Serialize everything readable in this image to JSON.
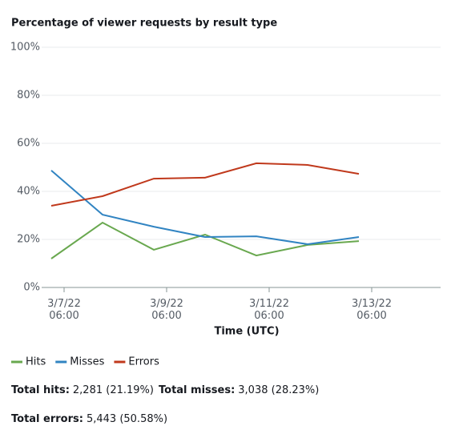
{
  "chart_data": {
    "type": "line",
    "title": "Percentage of viewer requests by result type",
    "x_label": "Time (UTC)",
    "x": [
      "2022-03-07T00:00Z",
      "2022-03-08T00:00Z",
      "2022-03-09T00:00Z",
      "2022-03-10T00:00Z",
      "2022-03-11T00:00Z",
      "2022-03-12T00:00Z",
      "2022-03-13T00:00Z"
    ],
    "series": [
      {
        "name": "Hits",
        "color": "#69a84f",
        "values": [
          12,
          27,
          15.7,
          22,
          13.3,
          17.7,
          19.3
        ]
      },
      {
        "name": "Misses",
        "color": "#3184c2",
        "values": [
          48.7,
          30.3,
          25.3,
          21,
          21.3,
          18,
          21
        ]
      },
      {
        "name": "Errors",
        "color": "#c0391c",
        "values": [
          34,
          38,
          45.3,
          45.7,
          51.7,
          51,
          47.3
        ]
      }
    ],
    "xlim": [
      "2022-03-06T19:30Z",
      "2022-03-14T14:15Z"
    ],
    "xticks": [
      {
        "value": "2022-03-07T06:00Z",
        "label": "3/7/22 06:00"
      },
      {
        "value": "2022-03-09T06:00Z",
        "label": "3/9/22 06:00"
      },
      {
        "value": "2022-03-11T06:00Z",
        "label": "3/11/22 06:00"
      },
      {
        "value": "2022-03-13T06:00Z",
        "label": "3/13/22 06:00"
      }
    ],
    "ylim": [
      0,
      100
    ],
    "yticks": [
      {
        "value": 0,
        "label": "0%"
      },
      {
        "value": 20,
        "label": "20%"
      },
      {
        "value": 40,
        "label": "40%"
      },
      {
        "value": 60,
        "label": "60%"
      },
      {
        "value": 80,
        "label": "80%"
      },
      {
        "value": 100,
        "label": "100%"
      }
    ],
    "grid": true,
    "legend": "bottom",
    "stats": [
      {
        "label": "Total hits:",
        "value": "2,281 (21.19%)"
      },
      {
        "label": "Total misses:",
        "value": "3,038 (28.23%)"
      },
      {
        "label": "Total errors:",
        "value": "5,443 (50.58%)"
      }
    ]
  }
}
